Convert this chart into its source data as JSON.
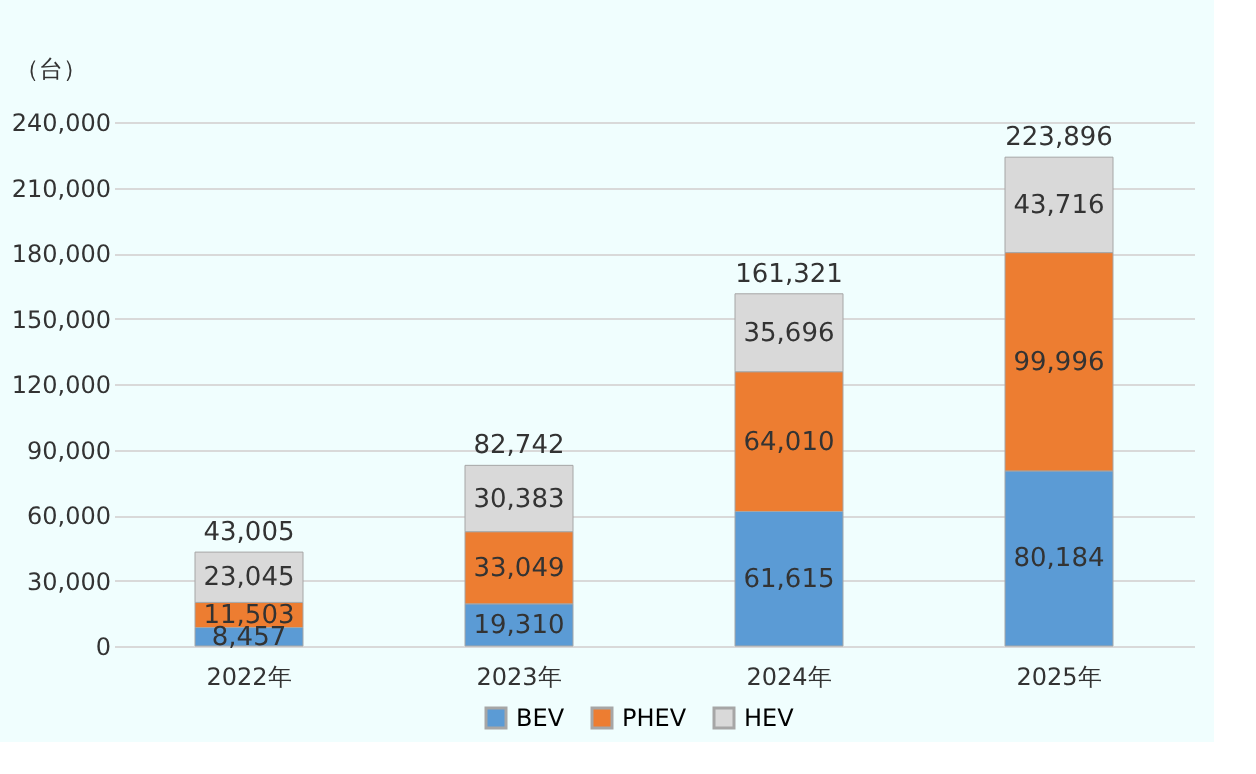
{
  "chart_data": {
    "type": "bar",
    "stacked": true,
    "ylabel": "（台）",
    "categories": [
      "2022年",
      "2023年",
      "2024年",
      "2025年"
    ],
    "series": [
      {
        "name": "BEV",
        "color": "#5b9bd5",
        "values": [
          8457,
          19310,
          61615,
          80184
        ],
        "value_labels": [
          "8,457",
          "19,310",
          "61,615",
          "80,184"
        ]
      },
      {
        "name": "PHEV",
        "color": "#ed7d31",
        "values": [
          11503,
          33049,
          64010,
          99996
        ],
        "value_labels": [
          "11,503",
          "33,049",
          "64,010",
          "99,996"
        ]
      },
      {
        "name": "HEV",
        "color": "#d9d9d9",
        "values": [
          23045,
          30383,
          35696,
          43716
        ],
        "value_labels": [
          "23,045",
          "30,383",
          "35,696",
          "43,716"
        ]
      }
    ],
    "totals": [
      "43,005",
      "82,742",
      "161,321",
      "223,896"
    ],
    "ylim": [
      0,
      240000
    ],
    "yticks": [
      0,
      {
        "value": 30000,
        "label": "30,000"
      },
      {
        "value": 60000,
        "label": "60,000"
      },
      {
        "value": 90000,
        "label": "90,000"
      },
      {
        "value": 120000,
        "label": "120,000"
      },
      {
        "value": 150000,
        "label": "150,000"
      },
      {
        "value": 180000,
        "label": "180,000"
      },
      {
        "value": 210000,
        "label": "210,000"
      },
      {
        "value": 240000,
        "label": "240,000"
      }
    ],
    "grid": "y",
    "legend": "bottom"
  }
}
